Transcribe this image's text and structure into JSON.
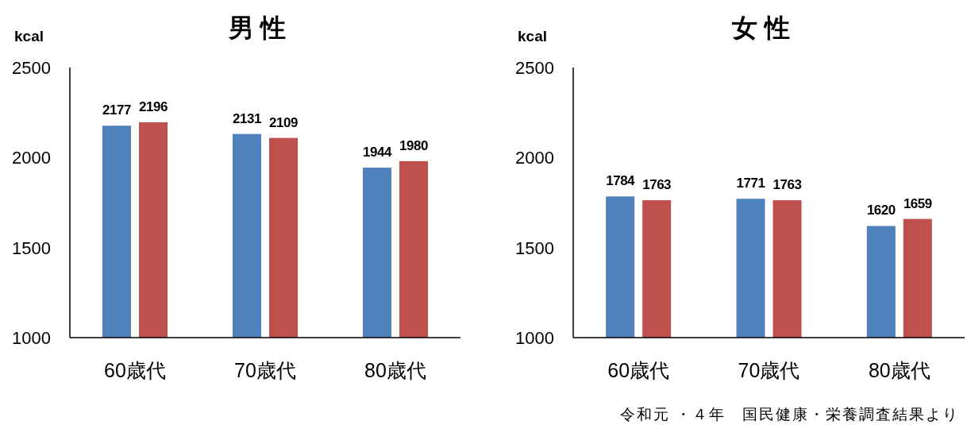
{
  "chart_data": [
    {
      "type": "bar",
      "title": "男 性",
      "ylabel": "kcal",
      "categories": [
        "60歳代",
        "70歳代",
        "80歳代"
      ],
      "series": [
        {
          "color": "#4f81bd",
          "values": [
            2177,
            2131,
            1944
          ]
        },
        {
          "color": "#c0504d",
          "values": [
            2196,
            2109,
            1980
          ]
        }
      ],
      "ylim": [
        1000,
        2500
      ],
      "yticks": [
        1000,
        1500,
        2000,
        2500
      ],
      "data_labels": true
    },
    {
      "type": "bar",
      "title": "女 性",
      "ylabel": "kcal",
      "categories": [
        "60歳代",
        "70歳代",
        "80歳代"
      ],
      "series": [
        {
          "color": "#4f81bd",
          "values": [
            1784,
            1771,
            1620
          ]
        },
        {
          "color": "#c0504d",
          "values": [
            1763,
            1763,
            1659
          ]
        }
      ],
      "ylim": [
        1000,
        2500
      ],
      "yticks": [
        1000,
        1500,
        2000,
        2500
      ],
      "data_labels": true,
      "annotations": [
        "令和元 ・４年　国民健康・栄養調査結果より"
      ]
    }
  ]
}
